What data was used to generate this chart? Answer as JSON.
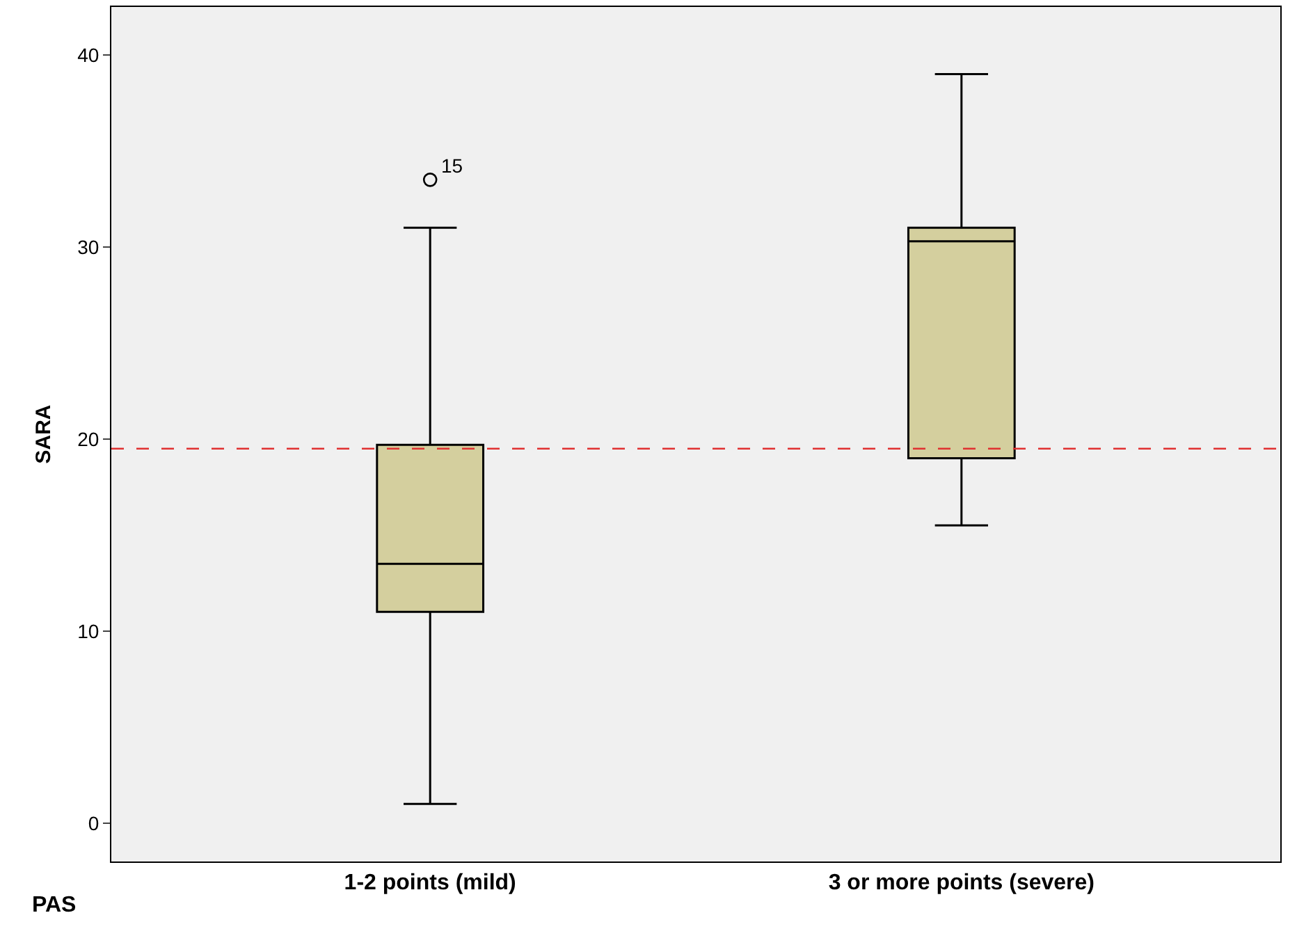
{
  "chart_data": {
    "type": "box",
    "xlabel": "PAS",
    "ylabel": "SARA",
    "categories": [
      "1-2 points (mild)",
      "3 or more points (severe)"
    ],
    "series": [
      {
        "color": "#d4cf9e",
        "boxes": [
          {
            "low": 1,
            "q1": 11,
            "median": 13.5,
            "q3": 19.7,
            "high": 31,
            "outliers": [
              33.5
            ]
          },
          {
            "low": 15.5,
            "q1": 19,
            "median": 30.3,
            "q3": 31,
            "high": 39
          }
        ]
      }
    ],
    "annotations": [
      "15"
    ],
    "ref_lines": [
      {
        "axis": "y",
        "value": 19.5,
        "color": "#e03030",
        "line_style": "dashed"
      }
    ],
    "ylim": [
      -2,
      42.5
    ],
    "yticks": [
      0,
      10,
      20,
      30,
      40
    ]
  }
}
